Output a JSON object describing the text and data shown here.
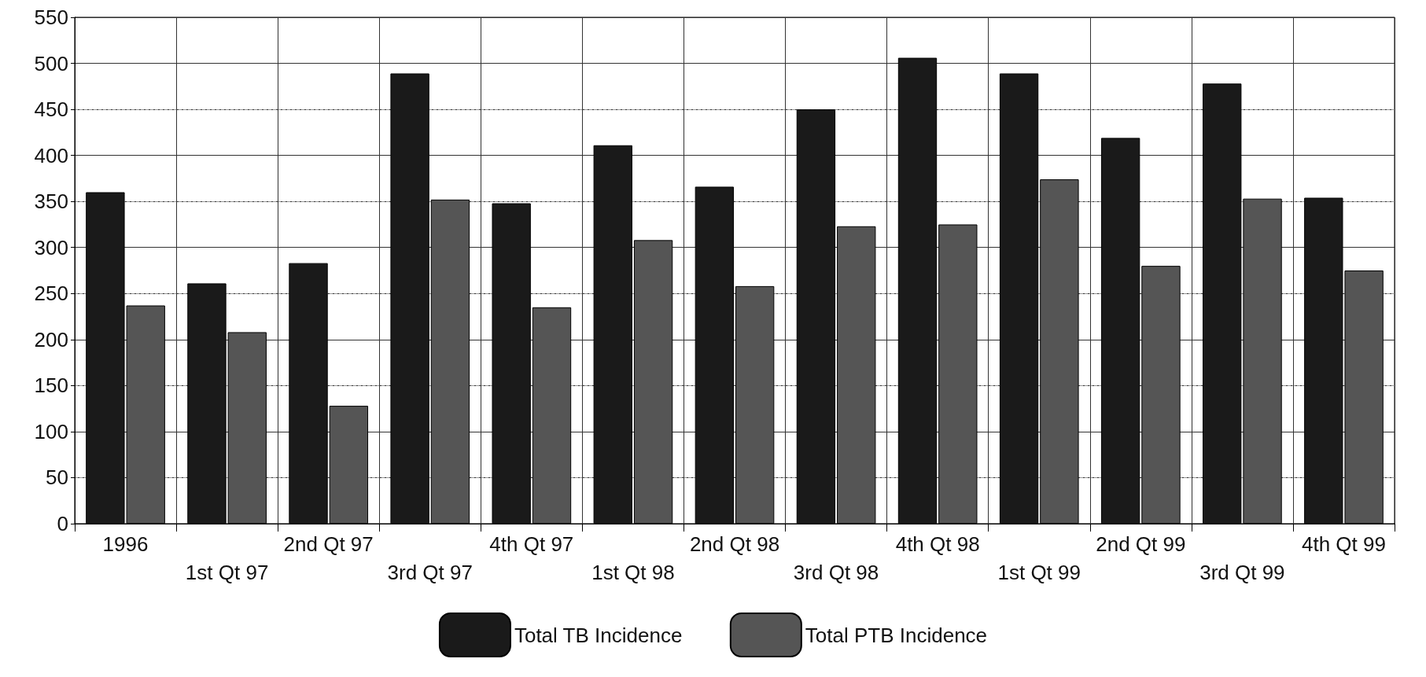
{
  "chart_data": {
    "type": "bar",
    "categories": [
      "1996",
      "1st Qt 97",
      "2nd Qt 97",
      "3rd Qt 97",
      "4th Qt 97",
      "1st Qt 98",
      "2nd Qt 98",
      "3rd Qt 98",
      "4th Qt 98",
      "1st Qt 99",
      "2nd Qt 99",
      "3rd Qt 99",
      "4th Qt 99"
    ],
    "series": [
      {
        "name": "Total TB Incidence",
        "color": "#1a1a1a",
        "values": [
          360,
          261,
          283,
          489,
          348,
          411,
          366,
          450,
          506,
          489,
          419,
          478,
          354
        ]
      },
      {
        "name": "Total PTB Incidence",
        "color": "#555555",
        "values": [
          237,
          208,
          128,
          352,
          235,
          308,
          258,
          323,
          325,
          374,
          280,
          353,
          275
        ]
      }
    ],
    "ylim": [
      0,
      550
    ],
    "yticks": [
      0,
      50,
      100,
      150,
      200,
      250,
      300,
      350,
      400,
      450,
      500,
      550
    ],
    "grid": true,
    "legend": "bottom"
  }
}
